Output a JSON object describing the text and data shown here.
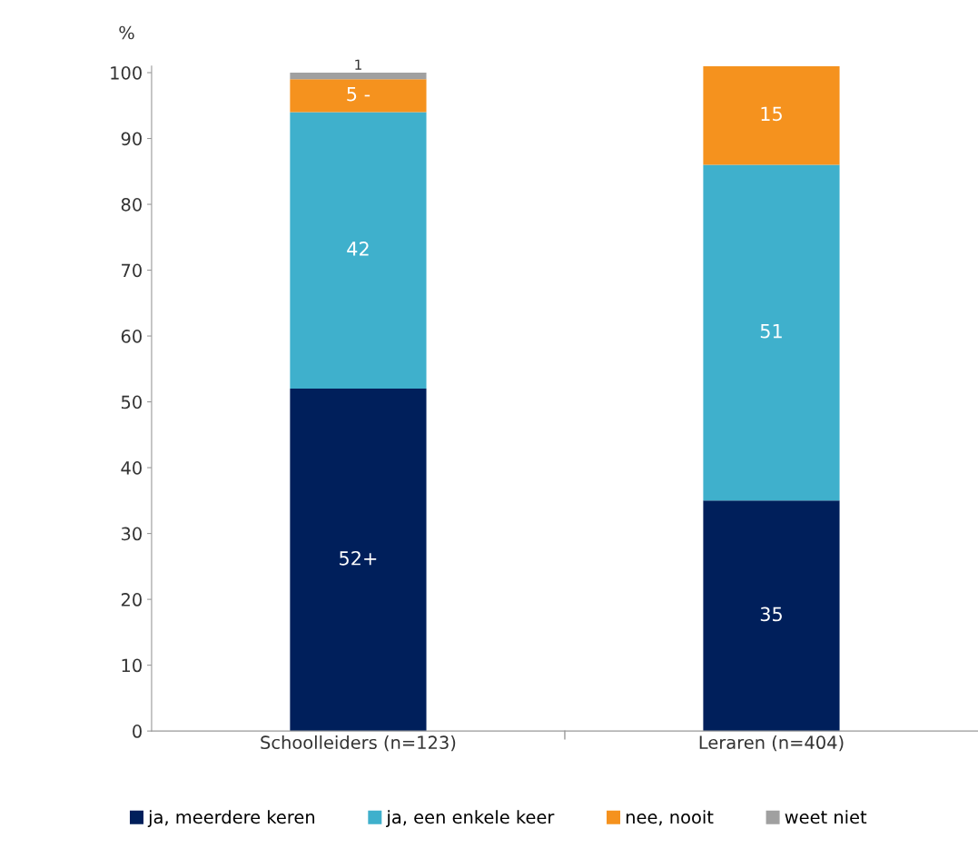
{
  "chart_data": {
    "type": "bar",
    "stacked": true,
    "ylabel": "%",
    "categories": [
      "Schoolleiders (n=123)",
      "Leraren (n=404)"
    ],
    "ylim": [
      0,
      101
    ],
    "yticks": [
      0,
      10,
      20,
      30,
      40,
      50,
      60,
      70,
      80,
      90,
      100
    ],
    "grid": false,
    "legend": "bottom",
    "series": [
      {
        "name": "ja, meerdere keren",
        "color": "#001f5b",
        "values": [
          52,
          35
        ],
        "value_labels": [
          "52+",
          "35"
        ]
      },
      {
        "name": "ja, een enkele keer",
        "color": "#3fb0cc",
        "values": [
          42,
          51
        ],
        "value_labels": [
          "42",
          "51"
        ]
      },
      {
        "name": "nee, nooit",
        "color": "#f5921e",
        "values": [
          5,
          15
        ],
        "value_labels": [
          "5 -",
          "15"
        ]
      },
      {
        "name": "weet niet",
        "color": "#a0a0a0",
        "values": [
          1,
          null
        ],
        "value_labels": [
          "1",
          null
        ]
      }
    ]
  }
}
